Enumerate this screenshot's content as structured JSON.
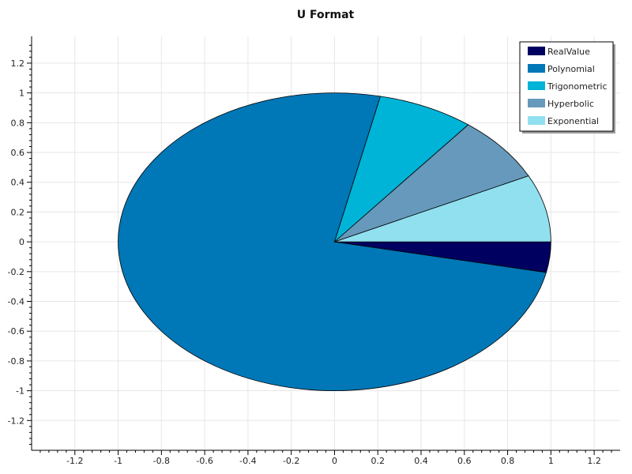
{
  "chart_data": {
    "type": "pie",
    "title": "U Format",
    "xlim": [
      -1.4,
      1.32
    ],
    "ylim": [
      -1.4,
      1.38
    ],
    "x_ticks": [
      -1.2,
      -1,
      -0.8,
      -0.6,
      -0.4,
      -0.2,
      0,
      0.2,
      0.4,
      0.6,
      0.8,
      1,
      1.2
    ],
    "y_ticks": [
      1.2,
      1,
      0.8,
      0.6,
      0.4,
      0.2,
      0,
      -0.2,
      -0.4,
      -0.6,
      -0.8,
      -1,
      -1.2
    ],
    "x_tick_labels": [
      "-1.2",
      "-1",
      "-0.8",
      "-0.6",
      "-0.4",
      "-0.2",
      "0",
      "0.2",
      "0.4",
      "0.6",
      "0.8",
      "1",
      "1.2"
    ],
    "y_tick_labels": [
      "1.2",
      "1",
      "0.8",
      "0.6",
      "0.4",
      "0.2",
      "0",
      "-0.2",
      "-0.4",
      "-0.6",
      "-0.8",
      "-1",
      "-1.2"
    ],
    "grid": true,
    "legend_position": "top-right",
    "slices": [
      {
        "name": "RealValue",
        "value": 3.3,
        "color": "#000060"
      },
      {
        "name": "Polynomial",
        "value": 75.1,
        "color": "#0077B6"
      },
      {
        "name": "Trigonometric",
        "value": 7.2,
        "color": "#00B4D8"
      },
      {
        "name": "Hyperbolic",
        "value": 7.1,
        "color": "#6699BB"
      },
      {
        "name": "Exponential",
        "value": 7.3,
        "color": "#90E0EF"
      }
    ]
  }
}
